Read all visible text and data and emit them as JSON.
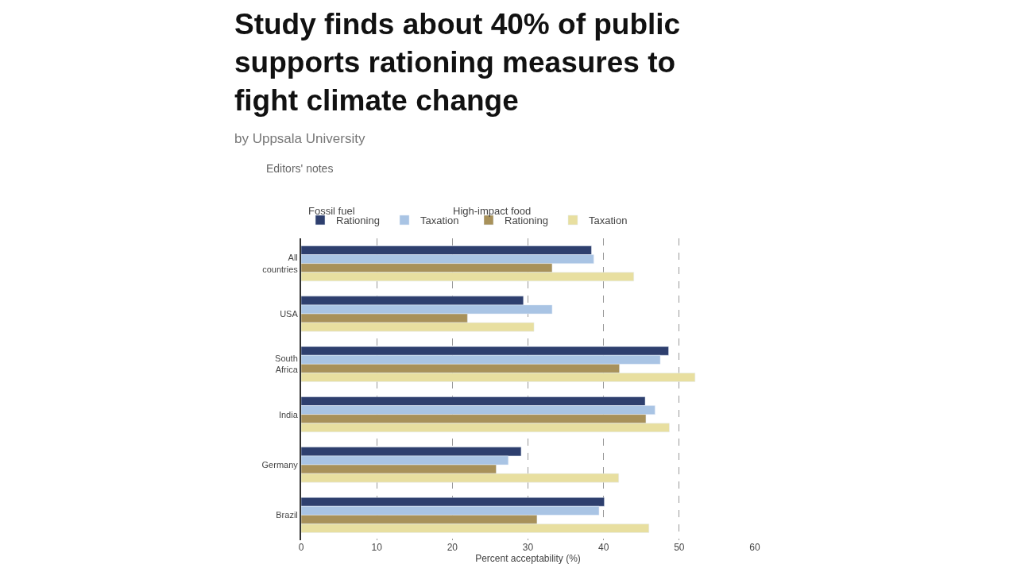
{
  "chart_data": {
    "type": "bar",
    "orientation": "horizontal",
    "title": "Study finds about 40% of public supports rationing measures to fight climate change",
    "subtitle": "by Uppsala University",
    "annotations": [
      "Editors' notes",
      "Fossil fuel",
      "High-impact food"
    ],
    "xlabel": "Percent acceptability (%)",
    "categories": [
      "All countries",
      "USA",
      "South Africa",
      "India",
      "Germany",
      "Brazil"
    ],
    "series": [
      {
        "name": "Rationing",
        "color": "#2e3f6e",
        "values": [
          38.4,
          29.4,
          48.6,
          45.5,
          29.1,
          40.1
        ]
      },
      {
        "name": "Taxation",
        "color": "#a9c4e4",
        "values": [
          38.7,
          33.2,
          47.5,
          46.8,
          27.4,
          39.4
        ]
      },
      {
        "name": "Rationing",
        "color": "#a8915a",
        "values": [
          33.2,
          22.0,
          42.1,
          45.6,
          25.8,
          31.2
        ]
      },
      {
        "name": "Taxation",
        "color": "#e8dfa0",
        "values": [
          44.0,
          30.8,
          52.1,
          48.7,
          42.0,
          46.0
        ]
      }
    ],
    "xlim": [
      0,
      60
    ],
    "xticks": [
      0,
      10,
      20,
      30,
      40,
      50,
      60
    ],
    "grid": "x",
    "legend": "top"
  }
}
